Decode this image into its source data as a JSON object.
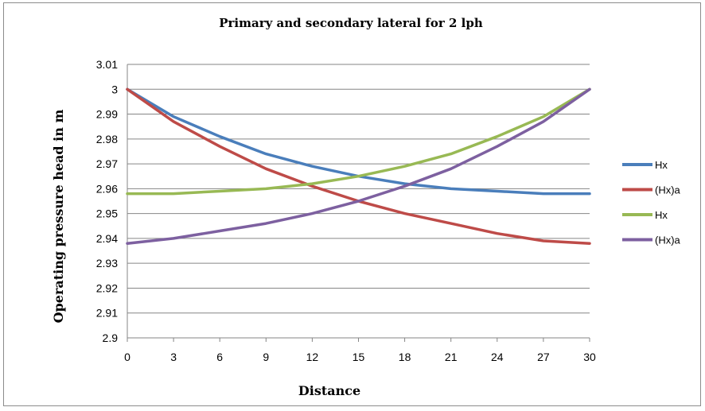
{
  "chart_data": {
    "type": "line",
    "title": "Primary and secondary  lateral for 2 lph",
    "xlabel": "Distance",
    "ylabel": "Operating pressure head  in m",
    "x": [
      0,
      3,
      6,
      9,
      12,
      15,
      18,
      21,
      24,
      27,
      30
    ],
    "x_tick_labels": [
      "0",
      "3",
      "6",
      "9",
      "12",
      "15",
      "18",
      "21",
      "24",
      "27",
      "30"
    ],
    "ylim": [
      2.9,
      3.01
    ],
    "y_tick_labels": [
      "2.9",
      "2.91",
      "2.92",
      "2.93",
      "2.94",
      "2.95",
      "2.96",
      "2.97",
      "2.98",
      "2.99",
      "3",
      "3.01"
    ],
    "grid": "horizontal",
    "legend_position": "right",
    "series": [
      {
        "name": "Hx",
        "color": "#4a7ebb",
        "values": [
          3.0,
          2.989,
          2.981,
          2.974,
          2.969,
          2.965,
          2.962,
          2.96,
          2.959,
          2.958,
          2.958
        ]
      },
      {
        "name": "(Hx)a",
        "color": "#be4b48",
        "values": [
          3.0,
          2.987,
          2.977,
          2.968,
          2.961,
          2.955,
          2.95,
          2.946,
          2.942,
          2.939,
          2.938
        ]
      },
      {
        "name": "Hx",
        "color": "#98b954",
        "values": [
          2.958,
          2.958,
          2.959,
          2.96,
          2.962,
          2.965,
          2.969,
          2.974,
          2.981,
          2.989,
          3.0
        ]
      },
      {
        "name": "(Hx)a",
        "color": "#7d60a0",
        "values": [
          2.938,
          2.94,
          2.943,
          2.946,
          2.95,
          2.955,
          2.961,
          2.968,
          2.977,
          2.987,
          3.0
        ]
      }
    ]
  }
}
